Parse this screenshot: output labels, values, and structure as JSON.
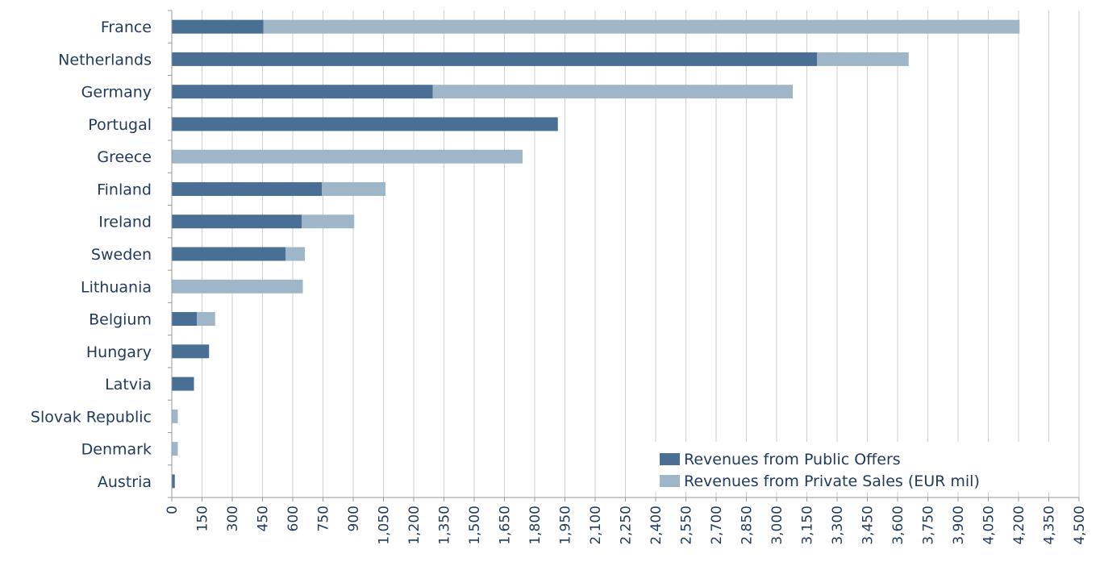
{
  "chart_data": {
    "type": "bar",
    "orientation": "horizontal",
    "stacked": true,
    "categories": [
      "France",
      "Netherlands",
      "Germany",
      "Portugal",
      "Greece",
      "Finland",
      "Ireland",
      "Sweden",
      "Lithuania",
      "Belgium",
      "Hungary",
      "Latvia",
      "Slovak Republic",
      "Denmark",
      "Austria"
    ],
    "series": [
      {
        "name": "Revenues from Public Offers",
        "color": "#4a6f94",
        "values": [
          455,
          3200,
          1295,
          1915,
          0,
          745,
          645,
          565,
          0,
          125,
          185,
          110,
          0,
          0,
          15
        ]
      },
      {
        "name": "Revenues from Private Sales (EUR mil)",
        "color": "#9eb6c7",
        "values": [
          3750,
          455,
          1785,
          0,
          1740,
          315,
          260,
          95,
          650,
          90,
          0,
          0,
          30,
          30,
          0
        ]
      }
    ],
    "xlim": [
      0,
      4500
    ],
    "x_ticks": [
      "0",
      "150",
      "300",
      "450",
      "600",
      "750",
      "900",
      "1,050",
      "1,200",
      "1,350",
      "1,500",
      "1,650",
      "1,800",
      "1,950",
      "2,100",
      "2,250",
      "2,400",
      "2,550",
      "2,700",
      "2,850",
      "3,000",
      "3,150",
      "3,300",
      "3,450",
      "3,600",
      "3,750",
      "3,900",
      "4,050",
      "4,200",
      "4,350",
      "4,500"
    ],
    "grid": true,
    "legend_position": "bottom-right"
  }
}
